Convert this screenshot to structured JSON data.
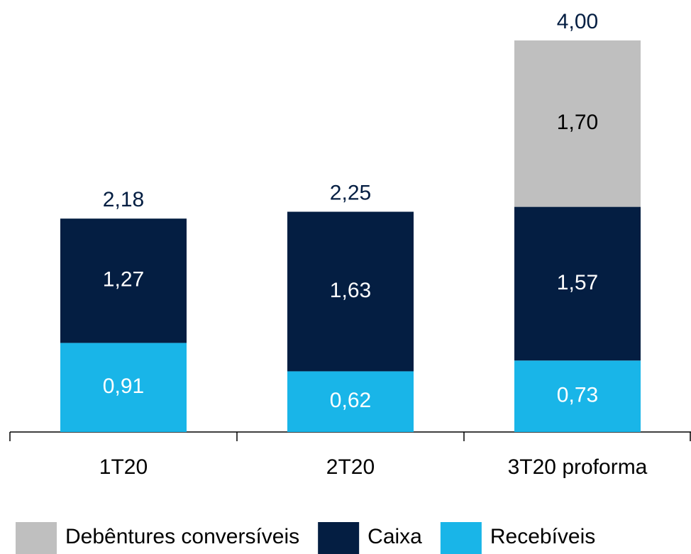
{
  "chart_data": {
    "type": "stacked_bar",
    "categories": [
      "1T20",
      "2T20",
      "3T20 proforma"
    ],
    "series": [
      {
        "name": "Debêntures conversíveis",
        "color": "#bfbfbf",
        "label_color": "#000000",
        "values": [
          null,
          null,
          1.7
        ],
        "value_labels": [
          null,
          null,
          "1,70"
        ]
      },
      {
        "name": "Caixa",
        "color": "#041e42",
        "label_color": "#ffffff",
        "values": [
          1.27,
          1.63,
          1.57
        ],
        "value_labels": [
          "1,27",
          "1,63",
          "1,57"
        ]
      },
      {
        "name": "Recebíveis",
        "color": "#19b5e8",
        "label_color": "#ffffff",
        "values": [
          0.91,
          0.62,
          0.73
        ],
        "value_labels": [
          "0,91",
          "0,62",
          "0,73"
        ]
      }
    ],
    "totals": [
      2.18,
      2.25,
      4.0
    ],
    "total_labels": [
      "2,18",
      "2,25",
      "4,00"
    ],
    "total_color": "#041e42"
  }
}
